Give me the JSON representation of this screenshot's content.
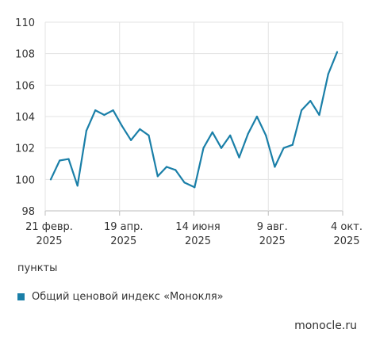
{
  "chart_data": {
    "type": "line",
    "title": "",
    "xlabel": "",
    "ylabel": "пункты",
    "ylim": [
      98,
      110
    ],
    "yticks": [
      98,
      100,
      102,
      104,
      106,
      108,
      110
    ],
    "grid": true,
    "legend_position": "bottom-left",
    "x_tick_labels": [
      {
        "line1": "21 февр.",
        "line2": "2025"
      },
      {
        "line1": "19 апр.",
        "line2": "2025"
      },
      {
        "line1": "14 июня",
        "line2": "2025"
      },
      {
        "line1": "9 авг.",
        "line2": "2025"
      },
      {
        "line1": "4 окт.",
        "line2": "2025"
      }
    ],
    "x": [
      "2025-02-21",
      "2025-02-28",
      "2025-03-07",
      "2025-03-14",
      "2025-03-21",
      "2025-03-28",
      "2025-04-04",
      "2025-04-11",
      "2025-04-18",
      "2025-04-25",
      "2025-05-02",
      "2025-05-09",
      "2025-05-16",
      "2025-05-23",
      "2025-05-30",
      "2025-06-06",
      "2025-06-14",
      "2025-06-21",
      "2025-06-28",
      "2025-07-05",
      "2025-07-12",
      "2025-07-19",
      "2025-07-26",
      "2025-08-02",
      "2025-08-09",
      "2025-08-16",
      "2025-08-23",
      "2025-08-30",
      "2025-09-06",
      "2025-09-13",
      "2025-09-20",
      "2025-09-27",
      "2025-10-04"
    ],
    "series": [
      {
        "name": "Общий ценовой индекс «Монокля»",
        "color": "#1a7fa8",
        "values": [
          100.0,
          101.2,
          101.3,
          99.6,
          103.1,
          104.4,
          104.1,
          104.4,
          103.4,
          102.5,
          103.2,
          102.8,
          100.2,
          100.8,
          100.6,
          99.8,
          99.5,
          102.0,
          103.0,
          102.0,
          102.8,
          101.4,
          102.9,
          104.0,
          102.8,
          100.8,
          102.0,
          102.2,
          104.4,
          105.0,
          104.1,
          106.7,
          108.1
        ]
      }
    ]
  },
  "unit_label": "пункты",
  "legend_label": "Общий ценовой индекс «Монокля»",
  "source": "monocle.ru"
}
